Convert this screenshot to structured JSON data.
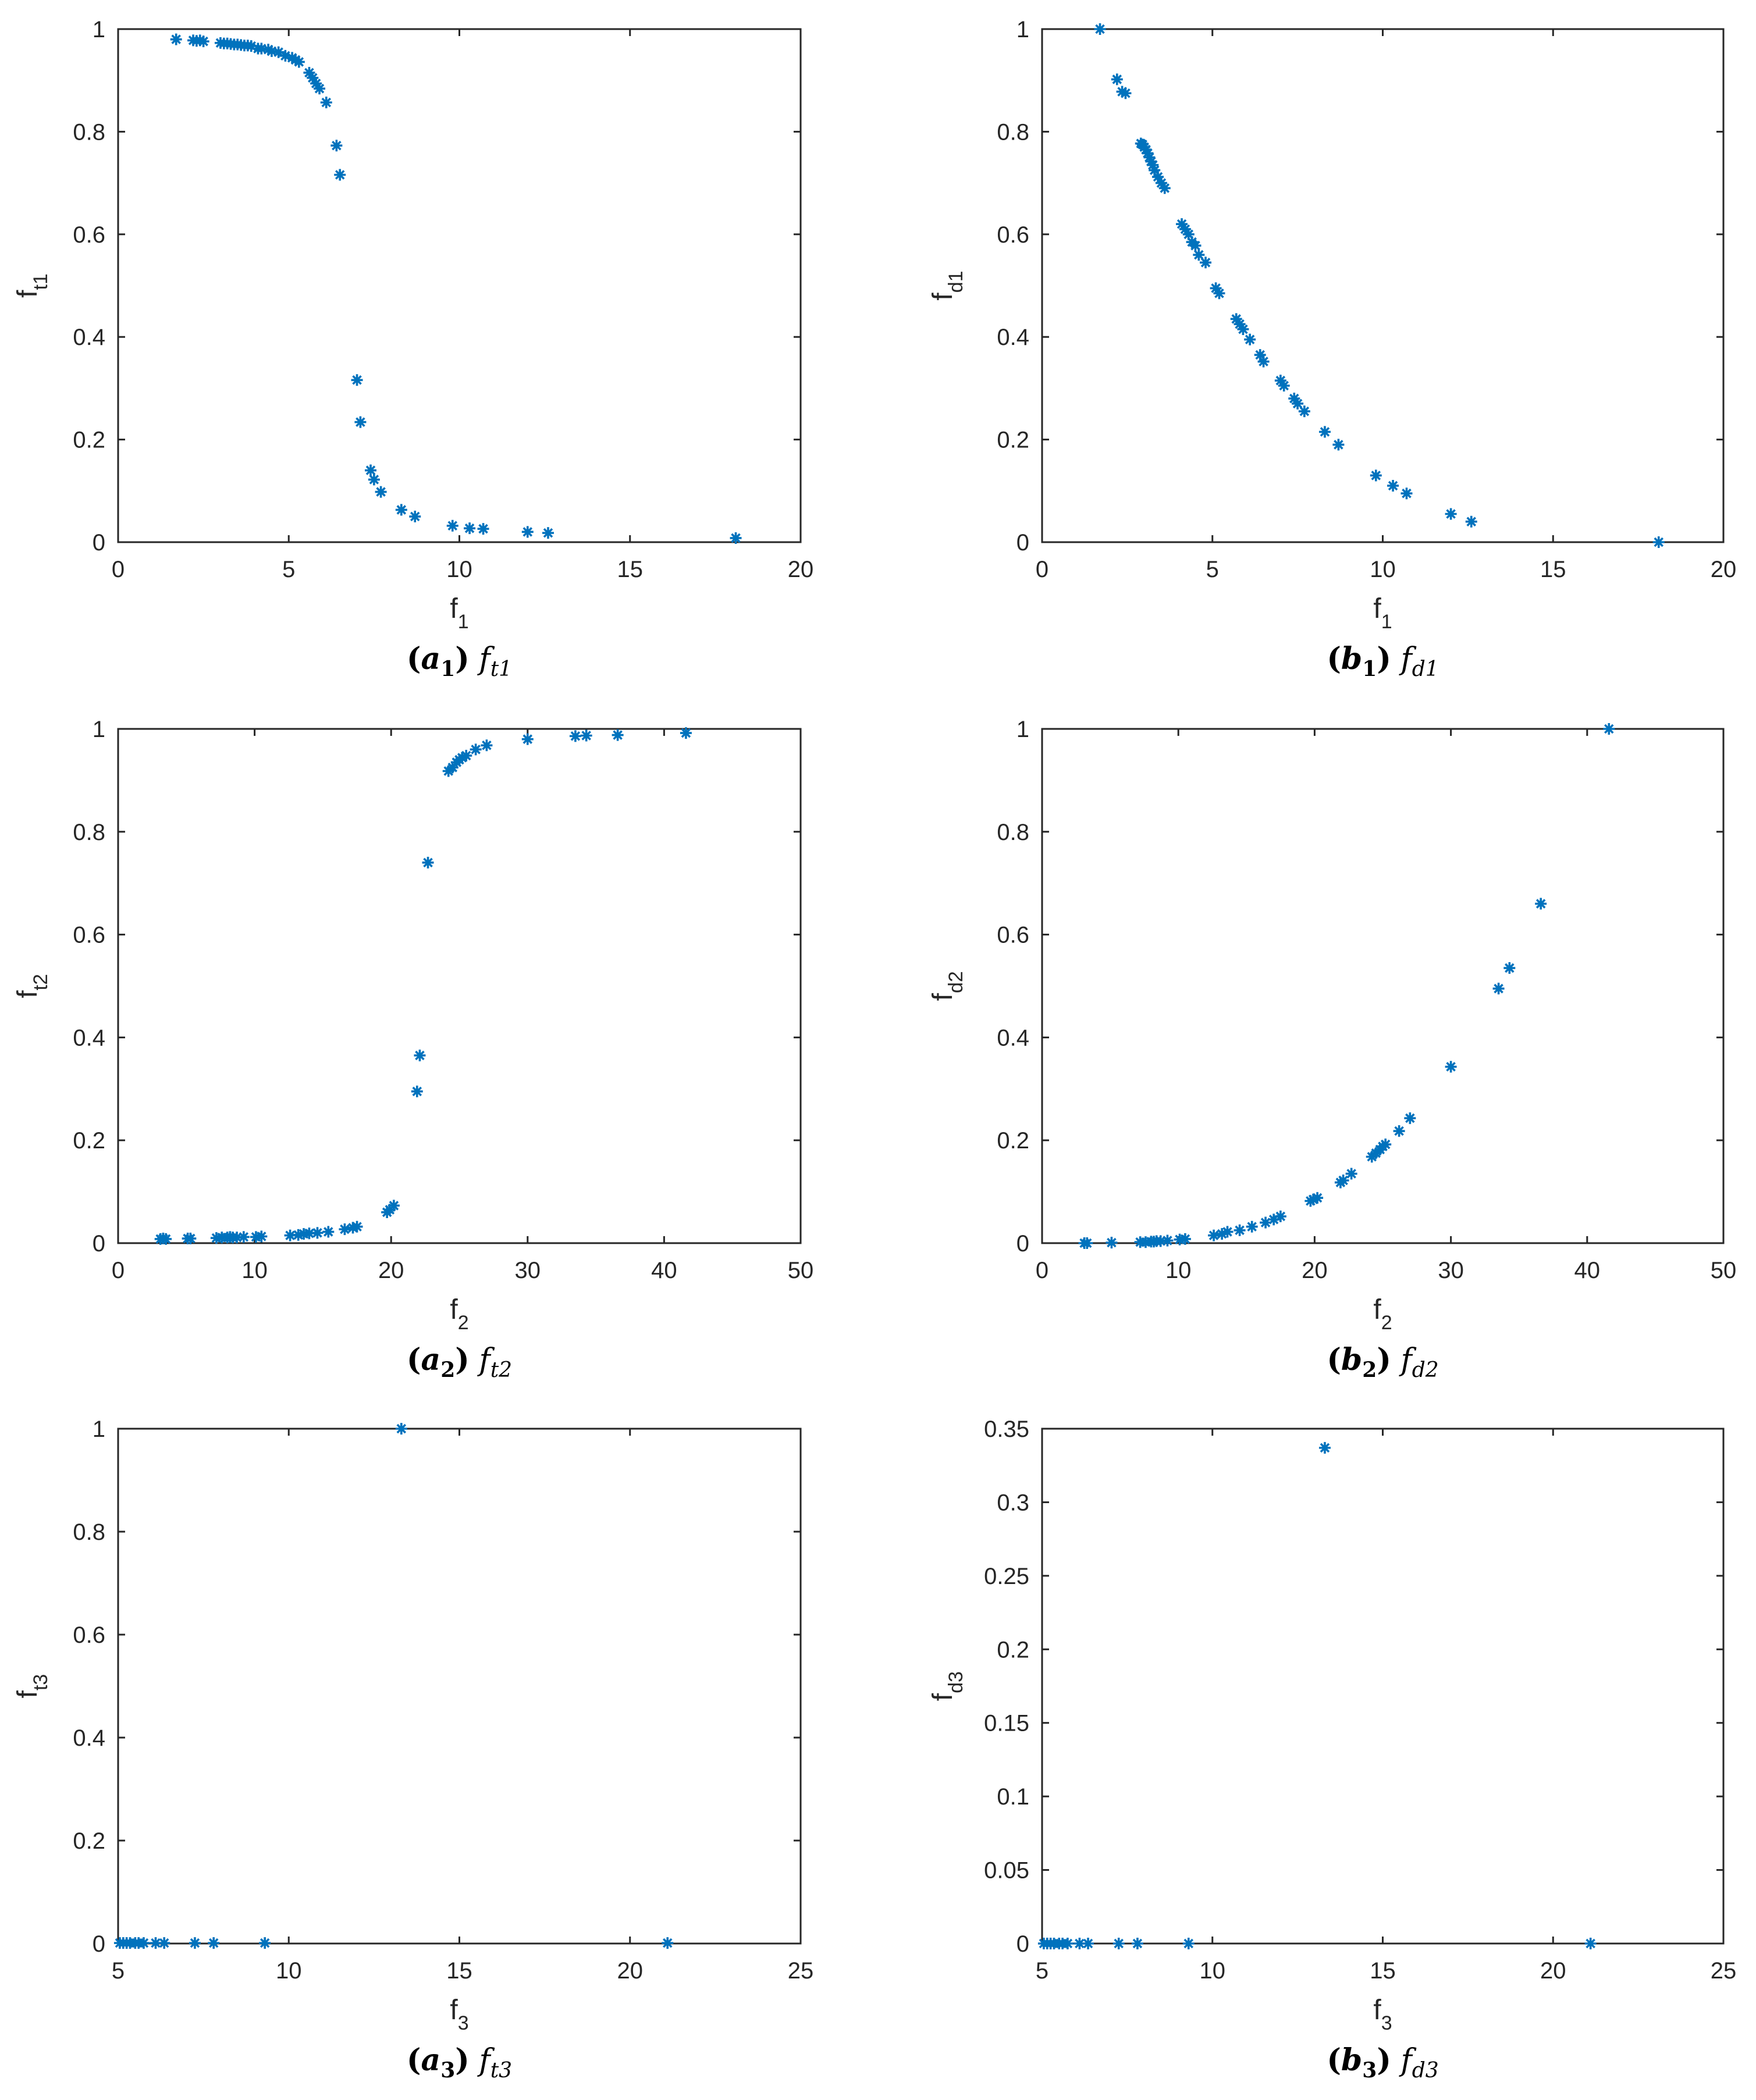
{
  "figure": {
    "marker_color": "#0072BD",
    "axis_color": "#262626"
  },
  "chart_data": [
    {
      "id": "a1",
      "type": "scatter",
      "marker": "asterisk",
      "caption": {
        "letter": "a",
        "num": "1",
        "fn": "f",
        "sub": "t1"
      },
      "xlabel": {
        "base": "f",
        "sub": "1"
      },
      "ylabel": {
        "base": "f",
        "sub": "t1"
      },
      "xlim": [
        0,
        20
      ],
      "ylim": [
        0,
        1
      ],
      "xticks": [
        0,
        5,
        10,
        15,
        20
      ],
      "yticks": [
        0,
        0.2,
        0.4,
        0.6,
        0.8,
        1
      ],
      "xtick_labels": [
        "0",
        "5",
        "10",
        "15",
        "20"
      ],
      "ytick_labels": [
        "0",
        "0.2",
        "0.4",
        "0.6",
        "0.8",
        "1"
      ],
      "grid": false,
      "x": [
        1.7,
        2.2,
        2.3,
        2.4,
        2.5,
        3.0,
        3.1,
        3.2,
        3.3,
        3.4,
        3.5,
        3.6,
        3.7,
        3.8,
        3.9,
        4.1,
        4.2,
        4.4,
        4.5,
        4.7,
        4.9,
        5.1,
        5.2,
        5.3,
        5.6,
        5.7,
        5.8,
        5.9,
        6.1,
        6.4,
        6.5,
        7.0,
        7.1,
        7.4,
        7.5,
        7.7,
        8.3,
        8.7,
        9.8,
        10.3,
        10.7,
        12.0,
        12.6,
        18.1
      ],
      "y": [
        0.98,
        0.978,
        0.977,
        0.978,
        0.976,
        0.973,
        0.972,
        0.972,
        0.971,
        0.97,
        0.97,
        0.969,
        0.968,
        0.968,
        0.967,
        0.962,
        0.962,
        0.96,
        0.957,
        0.955,
        0.948,
        0.944,
        0.94,
        0.936,
        0.915,
        0.905,
        0.894,
        0.884,
        0.857,
        0.773,
        0.716,
        0.316,
        0.234,
        0.14,
        0.122,
        0.098,
        0.063,
        0.05,
        0.032,
        0.027,
        0.026,
        0.02,
        0.018,
        0.008
      ]
    },
    {
      "id": "b1",
      "type": "scatter",
      "marker": "asterisk",
      "caption": {
        "letter": "b",
        "num": "1",
        "fn": "f",
        "sub": "d1"
      },
      "xlabel": {
        "base": "f",
        "sub": "1"
      },
      "ylabel": {
        "base": "f",
        "sub": "d1"
      },
      "xlim": [
        0,
        20
      ],
      "ylim": [
        0,
        1
      ],
      "xticks": [
        0,
        5,
        10,
        15,
        20
      ],
      "yticks": [
        0,
        0.2,
        0.4,
        0.6,
        0.8,
        1
      ],
      "xtick_labels": [
        "0",
        "5",
        "10",
        "15",
        "20"
      ],
      "ytick_labels": [
        "0",
        "0.2",
        "0.4",
        "0.6",
        "0.8",
        "1"
      ],
      "grid": false,
      "x": [
        1.7,
        2.2,
        2.35,
        2.45,
        2.9,
        2.95,
        3.0,
        3.05,
        3.1,
        3.15,
        3.2,
        3.25,
        3.3,
        3.4,
        3.5,
        3.6,
        4.1,
        4.2,
        4.3,
        4.4,
        4.5,
        4.6,
        4.8,
        5.1,
        5.2,
        5.7,
        5.8,
        5.9,
        6.1,
        6.4,
        6.5,
        7.0,
        7.1,
        7.4,
        7.5,
        7.7,
        8.3,
        8.7,
        9.8,
        10.3,
        10.7,
        12.0,
        12.6,
        18.1
      ],
      "y": [
        1.0,
        0.902,
        0.878,
        0.875,
        0.777,
        0.775,
        0.77,
        0.765,
        0.758,
        0.75,
        0.742,
        0.735,
        0.725,
        0.712,
        0.7,
        0.69,
        0.62,
        0.61,
        0.6,
        0.585,
        0.578,
        0.56,
        0.545,
        0.495,
        0.485,
        0.435,
        0.425,
        0.415,
        0.395,
        0.365,
        0.352,
        0.315,
        0.305,
        0.28,
        0.27,
        0.255,
        0.215,
        0.19,
        0.13,
        0.11,
        0.095,
        0.055,
        0.04,
        0.0
      ]
    },
    {
      "id": "a2",
      "type": "scatter",
      "marker": "asterisk",
      "caption": {
        "letter": "a",
        "num": "2",
        "fn": "f",
        "sub": "t2"
      },
      "xlabel": {
        "base": "f",
        "sub": "2"
      },
      "ylabel": {
        "base": "f",
        "sub": "t2"
      },
      "xlim": [
        0,
        50
      ],
      "ylim": [
        0,
        1
      ],
      "xticks": [
        0,
        10,
        20,
        30,
        40,
        50
      ],
      "yticks": [
        0,
        0.2,
        0.4,
        0.6,
        0.8,
        1
      ],
      "xtick_labels": [
        "0",
        "10",
        "20",
        "30",
        "40",
        "50"
      ],
      "ytick_labels": [
        "0",
        "0.2",
        "0.4",
        "0.6",
        "0.8",
        "1"
      ],
      "grid": false,
      "x": [
        3.1,
        3.3,
        3.5,
        5.1,
        5.3,
        7.2,
        7.6,
        8.0,
        8.2,
        8.4,
        8.7,
        9.2,
        10.1,
        10.5,
        12.6,
        13.2,
        13.6,
        14.0,
        14.6,
        15.4,
        16.6,
        17.2,
        17.5,
        19.7,
        19.9,
        20.2,
        21.9,
        22.1,
        22.7,
        24.2,
        24.5,
        24.8,
        25.0,
        25.2,
        25.5,
        26.2,
        27.0,
        30.0,
        33.5,
        34.3,
        36.6,
        41.6
      ],
      "y": [
        0.008,
        0.009,
        0.008,
        0.009,
        0.009,
        0.01,
        0.011,
        0.011,
        0.012,
        0.011,
        0.011,
        0.012,
        0.012,
        0.013,
        0.015,
        0.016,
        0.018,
        0.019,
        0.02,
        0.022,
        0.027,
        0.03,
        0.032,
        0.06,
        0.065,
        0.073,
        0.295,
        0.365,
        0.74,
        0.918,
        0.925,
        0.935,
        0.94,
        0.944,
        0.948,
        0.96,
        0.968,
        0.98,
        0.986,
        0.987,
        0.988,
        0.992
      ]
    },
    {
      "id": "b2",
      "type": "scatter",
      "marker": "asterisk",
      "caption": {
        "letter": "b",
        "num": "2",
        "fn": "f",
        "sub": "d2"
      },
      "xlabel": {
        "base": "f",
        "sub": "2"
      },
      "ylabel": {
        "base": "f",
        "sub": "d2"
      },
      "xlim": [
        0,
        50
      ],
      "ylim": [
        0,
        1
      ],
      "xticks": [
        0,
        10,
        20,
        30,
        40,
        50
      ],
      "yticks": [
        0,
        0.2,
        0.4,
        0.6,
        0.8,
        1
      ],
      "xtick_labels": [
        "0",
        "10",
        "20",
        "30",
        "40",
        "50"
      ],
      "ytick_labels": [
        "0",
        "0.2",
        "0.4",
        "0.6",
        "0.8",
        "1"
      ],
      "grid": false,
      "x": [
        3.1,
        3.3,
        5.1,
        7.2,
        7.6,
        8.0,
        8.2,
        8.4,
        8.7,
        9.2,
        10.1,
        10.5,
        12.6,
        13.2,
        13.6,
        14.5,
        15.4,
        16.4,
        17.0,
        17.5,
        19.7,
        19.9,
        20.2,
        21.9,
        22.1,
        22.7,
        24.2,
        24.5,
        24.8,
        25.0,
        25.2,
        26.2,
        27.0,
        30.0,
        33.5,
        34.3,
        36.6,
        41.6
      ],
      "y": [
        0.0,
        0.0,
        0.001,
        0.002,
        0.002,
        0.003,
        0.003,
        0.004,
        0.004,
        0.005,
        0.007,
        0.008,
        0.015,
        0.018,
        0.022,
        0.025,
        0.032,
        0.04,
        0.046,
        0.052,
        0.082,
        0.085,
        0.088,
        0.118,
        0.122,
        0.135,
        0.168,
        0.175,
        0.182,
        0.188,
        0.192,
        0.218,
        0.243,
        0.343,
        0.495,
        0.535,
        0.66,
        1.0
      ]
    },
    {
      "id": "a3",
      "type": "scatter",
      "marker": "asterisk",
      "caption": {
        "letter": "a",
        "num": "3",
        "fn": "f",
        "sub": "t3"
      },
      "xlabel": {
        "base": "f",
        "sub": "3"
      },
      "ylabel": {
        "base": "f",
        "sub": "t3"
      },
      "xlim": [
        5,
        25
      ],
      "ylim": [
        0,
        1
      ],
      "xticks": [
        5,
        10,
        15,
        20,
        25
      ],
      "yticks": [
        0,
        0.2,
        0.4,
        0.6,
        0.8,
        1
      ],
      "xtick_labels": [
        "5",
        "10",
        "15",
        "20",
        "25"
      ],
      "ytick_labels": [
        "0",
        "0.2",
        "0.4",
        "0.6",
        "0.8",
        "1"
      ],
      "grid": false,
      "x": [
        5.05,
        5.15,
        5.25,
        5.35,
        5.5,
        5.6,
        5.75,
        6.1,
        6.35,
        7.25,
        7.8,
        9.3,
        13.3,
        21.1
      ],
      "y": [
        0.001,
        0.001,
        0.001,
        0.001,
        0.001,
        0.001,
        0.001,
        0.001,
        0.001,
        0.001,
        0.001,
        0.001,
        1.0,
        0.001
      ]
    },
    {
      "id": "b3",
      "type": "scatter",
      "marker": "asterisk",
      "caption": {
        "letter": "b",
        "num": "3",
        "fn": "f",
        "sub": "d3"
      },
      "xlabel": {
        "base": "f",
        "sub": "3"
      },
      "ylabel": {
        "base": "f",
        "sub": "d3"
      },
      "xlim": [
        5,
        25
      ],
      "ylim": [
        0,
        0.35
      ],
      "xticks": [
        5,
        10,
        15,
        20,
        25
      ],
      "yticks": [
        0,
        0.05,
        0.1,
        0.15,
        0.2,
        0.25,
        0.3,
        0.35
      ],
      "xtick_labels": [
        "5",
        "10",
        "15",
        "20",
        "25"
      ],
      "ytick_labels": [
        "0",
        "0.05",
        "0.1",
        "0.15",
        "0.2",
        "0.25",
        "0.3",
        "0.35"
      ],
      "grid": false,
      "x": [
        5.05,
        5.15,
        5.25,
        5.35,
        5.5,
        5.6,
        5.75,
        6.1,
        6.35,
        7.25,
        7.8,
        9.3,
        13.3,
        21.1
      ],
      "y": [
        0.0,
        0.0,
        0.0,
        0.0,
        0.0,
        0.0,
        0.0,
        0.0,
        0.0,
        0.0,
        0.0,
        0.0,
        0.337,
        0.0
      ]
    }
  ]
}
